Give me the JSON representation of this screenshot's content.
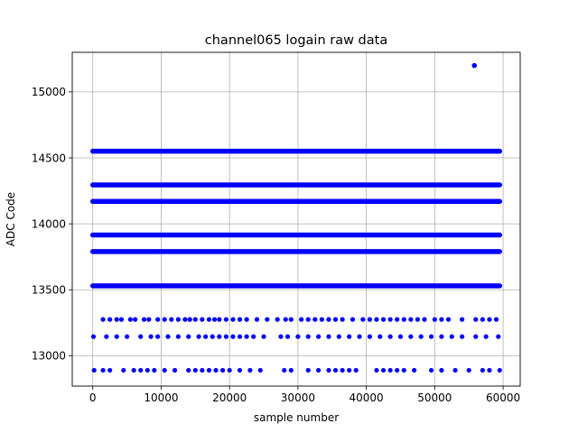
{
  "chart_data": {
    "type": "scatter",
    "title": "channel065 logain raw data",
    "xlabel": "sample number",
    "ylabel": "ADC Code",
    "xlim": [
      -3000,
      62500
    ],
    "ylim": [
      12770,
      15300
    ],
    "x_ticks": [
      0,
      10000,
      20000,
      30000,
      40000,
      50000,
      60000
    ],
    "x_tick_labels": [
      "0",
      "10000",
      "20000",
      "30000",
      "40000",
      "50000",
      "60000"
    ],
    "y_ticks": [
      13000,
      13500,
      14000,
      14500,
      15000
    ],
    "y_tick_labels": [
      "13000",
      "13500",
      "14000",
      "14500",
      "15000"
    ],
    "grid": true,
    "marker_color": "#0000ff",
    "x_range": [
      0,
      59500
    ],
    "dense_levels": [
      14550,
      14295,
      14170,
      13915,
      13790,
      13530
    ],
    "sparse_levels": [
      {
        "y": 13275,
        "x": [
          1500,
          2500,
          3500,
          4200,
          5500,
          6200,
          7500,
          8200,
          9500,
          10500,
          11500,
          12500,
          13500,
          14200,
          15000,
          16000,
          17000,
          17800,
          18500,
          19500,
          20500,
          21500,
          22500,
          24000,
          25500,
          27000,
          28200,
          29000,
          30500,
          31500,
          32500,
          33500,
          34500,
          35500,
          36500,
          38000,
          39500,
          40500,
          41500,
          42500,
          43500,
          44500,
          45500,
          46500,
          47500,
          48500,
          50000,
          51000,
          52000,
          54000,
          56000,
          57000,
          58000,
          59000
        ]
      },
      {
        "y": 13145,
        "x": [
          100,
          2000,
          3500,
          5000,
          7000,
          8500,
          9500,
          11000,
          12500,
          14000,
          15500,
          16500,
          17500,
          18500,
          19500,
          20500,
          21500,
          22500,
          23500,
          25000,
          27500,
          28500,
          30000,
          31500,
          33000,
          34500,
          36000,
          37500,
          39000,
          40500,
          42000,
          43500,
          45000,
          46500,
          48000,
          49500,
          51000,
          52500,
          54000,
          56000,
          57500,
          59300
        ]
      },
      {
        "y": 12890,
        "x": [
          200,
          1500,
          2500,
          4500,
          6000,
          7000,
          8000,
          9000,
          10500,
          12000,
          14000,
          15000,
          16000,
          17000,
          18000,
          19000,
          20000,
          21500,
          23000,
          24500,
          28000,
          29000,
          31500,
          33000,
          34500,
          35500,
          36500,
          37500,
          38500,
          41500,
          42500,
          43500,
          44500,
          45500,
          47000,
          49500,
          51000,
          53000,
          55000,
          57000,
          58000,
          59500
        ]
      }
    ],
    "outliers": [
      {
        "x": 55800,
        "y": 15200
      }
    ]
  }
}
